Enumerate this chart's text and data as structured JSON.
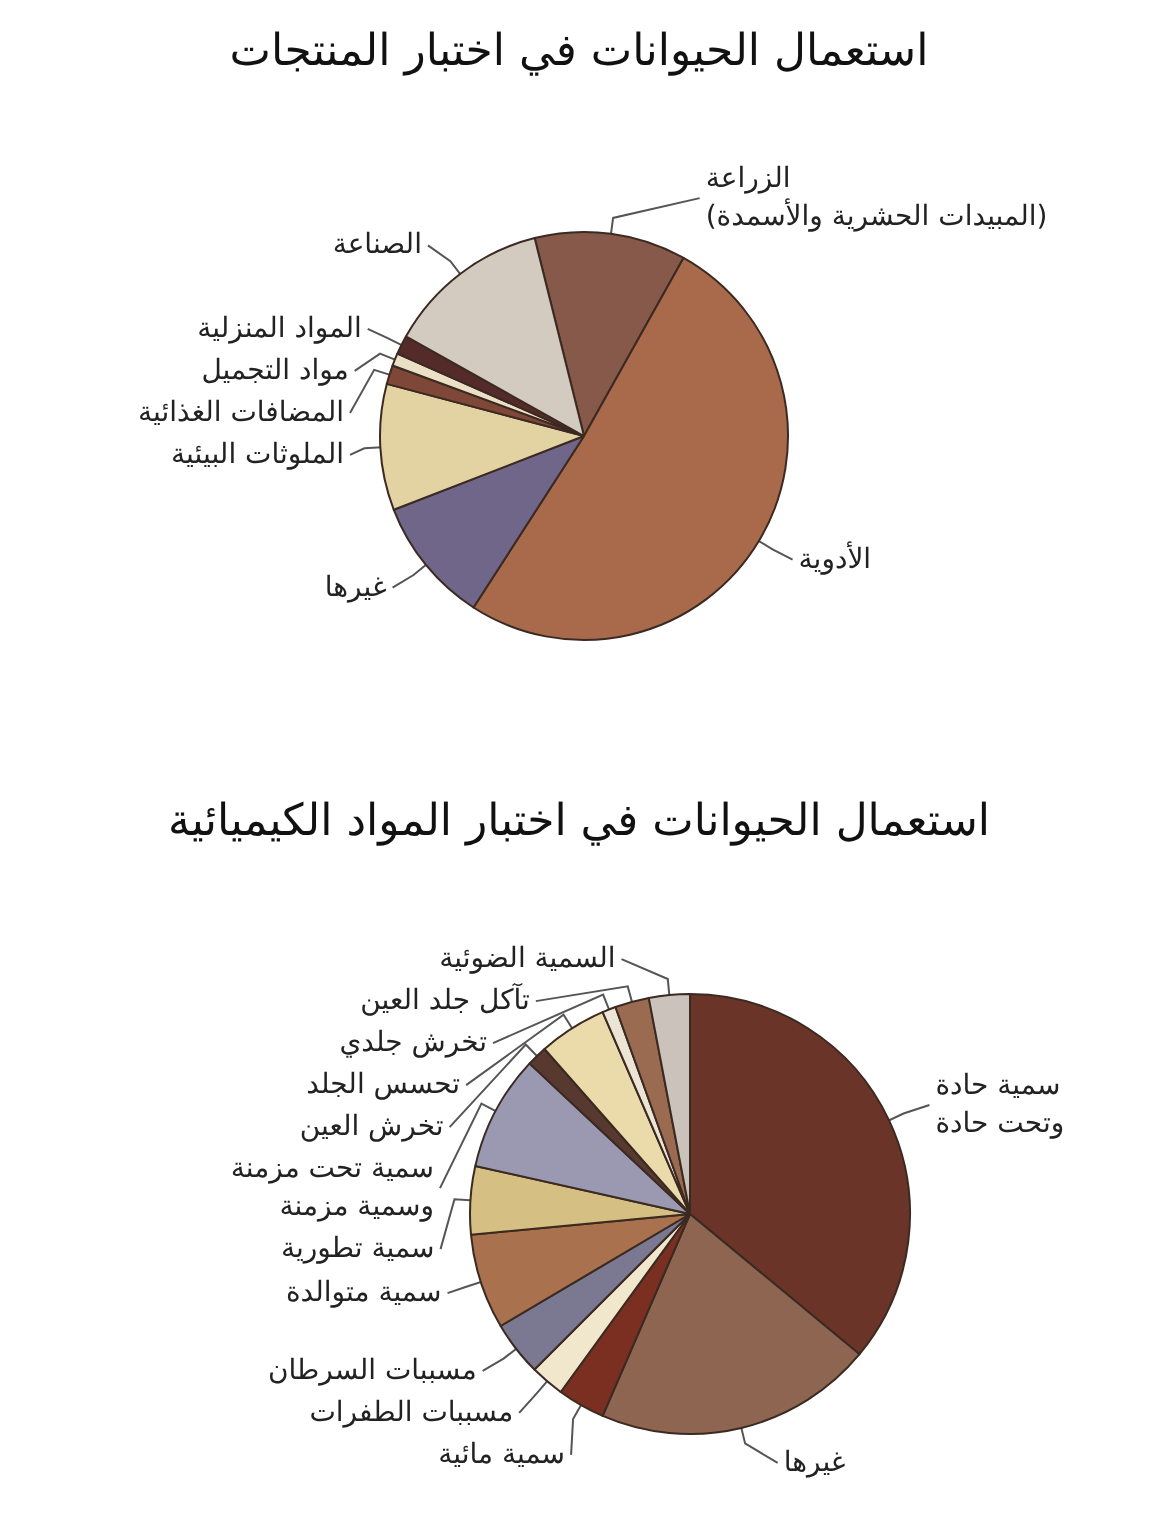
{
  "chart_data": [
    {
      "type": "pie",
      "title": "استعمال الحيوانات في اختبار المنتجات",
      "categories": [
        "الزراعة\n(المبيدات الحشرية والأسمدة)",
        "الأدوية",
        "غيرها",
        "الملوثات البيئية",
        "المضافات الغذائية",
        "مواد التجميل",
        "المواد المنزلية",
        "الصناعة"
      ],
      "values": [
        12,
        51,
        10,
        10,
        1.5,
        1,
        1.5,
        13
      ],
      "colors": [
        "#87594a",
        "#a9694b",
        "#6f6689",
        "#e3d3a3",
        "#7e4737",
        "#ebe0c6",
        "#552b2a",
        "#d3cbbf"
      ]
    },
    {
      "type": "pie",
      "title": "استعمال الحيوانات في اختبار المواد الكيميائية",
      "categories": [
        "سمية حادة\nوتحت حادة",
        "غيرها",
        "سمية مائية",
        "مسببات الطفرات",
        "مسببات السرطان",
        "سمية متوالدة",
        "سمية تطورية",
        "سمية تحت مزمنة\nوسمية مزمنة",
        "تخرش العين",
        "تحسس الجلد",
        "تخرش جلدي",
        "تآكل جلد العين",
        "السمية الضوئية"
      ],
      "values": [
        36,
        20.5,
        3.5,
        2.5,
        4,
        7,
        5,
        8.5,
        1.5,
        5,
        1,
        2.5,
        3
      ],
      "colors": [
        "#6b3429",
        "#8d6551",
        "#7b2f21",
        "#f1e7cd",
        "#7b7991",
        "#a9714d",
        "#d6bf82",
        "#9b99b1",
        "#58392f",
        "#ebdbab",
        "#ece4d4",
        "#9b6b51",
        "#cbc3bb"
      ]
    }
  ]
}
